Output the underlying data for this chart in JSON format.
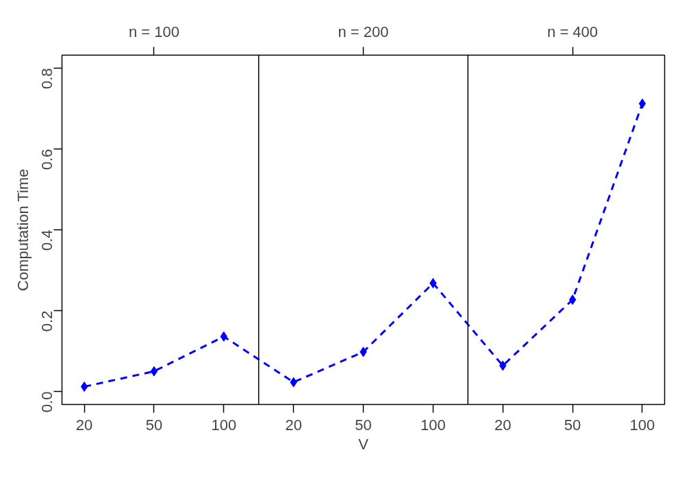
{
  "chart_data": {
    "type": "line",
    "xlabel": "V",
    "ylabel": "Computation Time",
    "categories": [
      "20",
      "50",
      "100",
      "20",
      "50",
      "100",
      "20",
      "50",
      "100"
    ],
    "series": [
      {
        "color": "#0000ff",
        "values": [
          0.012,
          0.05,
          0.136,
          0.023,
          0.098,
          0.268,
          0.064,
          0.227,
          0.712
        ]
      }
    ],
    "annotations": [
      "n = 100",
      "n = 200",
      "n = 400"
    ],
    "ylim": [
      -0.032,
      0.832
    ],
    "yticks": [
      {
        "value": 0,
        "label": "0.0"
      },
      {
        "value": 0.2,
        "label": "0.2"
      },
      {
        "value": 0.4,
        "label": "0.4"
      },
      {
        "value": 0.6,
        "label": "0.6"
      },
      {
        "value": 0.8,
        "label": "0.8"
      }
    ],
    "marker": "diamond",
    "line_style": "dashed",
    "grid": false
  }
}
